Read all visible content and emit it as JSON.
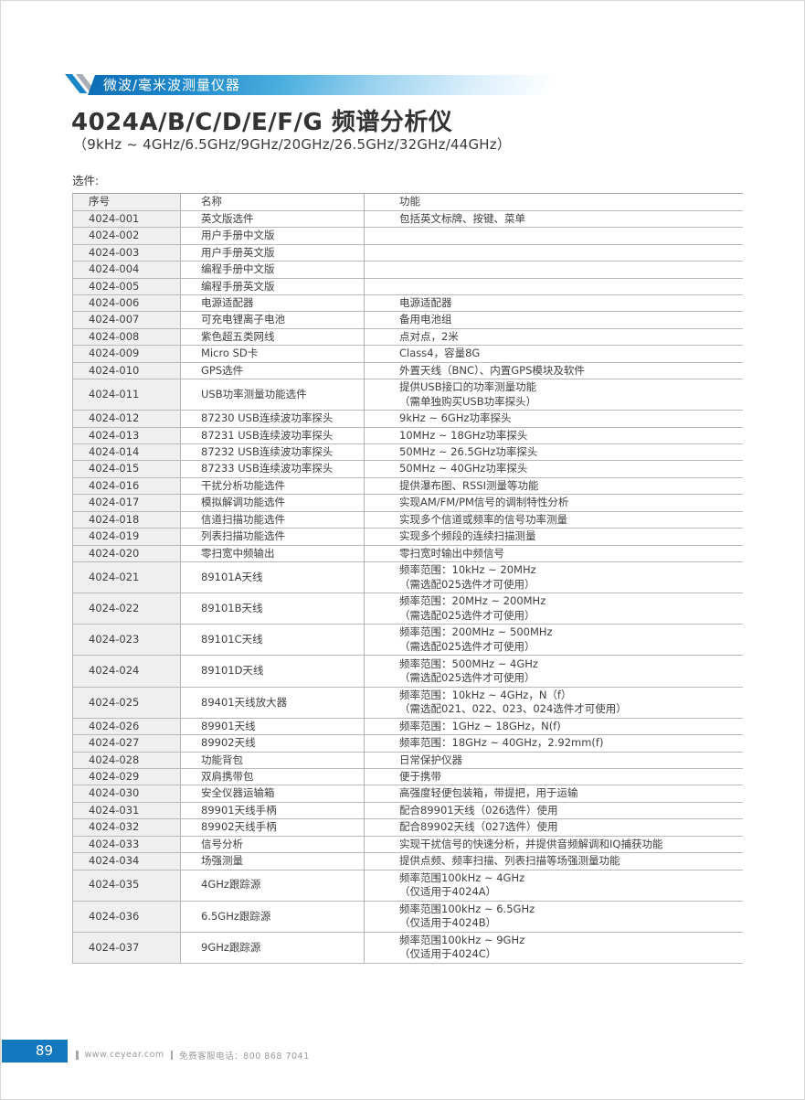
{
  "banner": {
    "label": "微波/毫米波测量仪器"
  },
  "header": {
    "title": "4024A/B/C/D/E/F/G 频谱分析仪",
    "subtitle": "（9kHz ~ 4GHz/6.5GHz/9GHz/20GHz/26.5GHz/32GHz/44GHz）",
    "section_label": "选件:"
  },
  "colors": {
    "banner_blue": "#0f6fb6",
    "footer_blue": "#1478bf",
    "table_shaded_column": "#efefef",
    "table_border": "#b5b5b5",
    "text": "#3e3e3e",
    "footer_text": "#9b9b9b"
  },
  "table": {
    "headers": [
      "序号",
      "名称",
      "功能"
    ],
    "rows": [
      {
        "no": "4024-001",
        "name": "英文版选件",
        "func": [
          "包括英文标牌、按键、菜单"
        ]
      },
      {
        "no": "4024-002",
        "name": "用户手册中文版",
        "func": []
      },
      {
        "no": "4024-003",
        "name": "用户手册英文版",
        "func": []
      },
      {
        "no": "4024-004",
        "name": "编程手册中文版",
        "func": []
      },
      {
        "no": "4024-005",
        "name": "编程手册英文版",
        "func": []
      },
      {
        "no": "4024-006",
        "name": "电源适配器",
        "func": [
          "电源适配器"
        ]
      },
      {
        "no": "4024-007",
        "name": "可充电锂离子电池",
        "func": [
          "备用电池组"
        ]
      },
      {
        "no": "4024-008",
        "name": "紫色超五类网线",
        "func": [
          "点对点，2米"
        ]
      },
      {
        "no": "4024-009",
        "name": "Micro SD卡",
        "func": [
          "Class4，容量8G"
        ]
      },
      {
        "no": "4024-010",
        "name": "GPS选件",
        "func": [
          "外置天线（BNC）、内置GPS模块及软件"
        ]
      },
      {
        "no": "4024-011",
        "name": "USB功率测量功能选件",
        "func": [
          "提供USB接口的功率测量功能",
          "（需单独购买USB功率探头）"
        ]
      },
      {
        "no": "4024-012",
        "name": "87230 USB连续波功率探头",
        "func": [
          "9kHz ~ 6GHz功率探头"
        ]
      },
      {
        "no": "4024-013",
        "name": "87231 USB连续波功率探头",
        "func": [
          "10MHz ~ 18GHz功率探头"
        ]
      },
      {
        "no": "4024-014",
        "name": "87232 USB连续波功率探头",
        "func": [
          "50MHz ~ 26.5GHz功率探头"
        ]
      },
      {
        "no": "4024-015",
        "name": "87233 USB连续波功率探头",
        "func": [
          "50MHz ~ 40GHz功率探头"
        ]
      },
      {
        "no": "4024-016",
        "name": "干扰分析功能选件",
        "func": [
          "提供瀑布图、RSSI测量等功能"
        ]
      },
      {
        "no": "4024-017",
        "name": "模拟解调功能选件",
        "func": [
          "实现AM/FM/PM信号的调制特性分析"
        ]
      },
      {
        "no": "4024-018",
        "name": "信道扫描功能选件",
        "func": [
          "实现多个信道或频率的信号功率测量"
        ]
      },
      {
        "no": "4024-019",
        "name": "列表扫描功能选件",
        "func": [
          "实现多个频段的连续扫描测量"
        ]
      },
      {
        "no": "4024-020",
        "name": "零扫宽中频输出",
        "func": [
          "零扫宽时输出中频信号"
        ]
      },
      {
        "no": "4024-021",
        "name": "89101A天线",
        "func": [
          "频率范围：10kHz ~ 20MHz",
          "（需选配025选件才可使用）"
        ]
      },
      {
        "no": "4024-022",
        "name": "89101B天线",
        "func": [
          "频率范围：20MHz ~ 200MHz",
          "（需选配025选件才可使用）"
        ]
      },
      {
        "no": "4024-023",
        "name": "89101C天线",
        "func": [
          "频率范围：200MHz ~ 500MHz",
          "（需选配025选件才可使用）"
        ]
      },
      {
        "no": "4024-024",
        "name": "89101D天线",
        "func": [
          "频率范围：500MHz ~ 4GHz",
          "（需选配025选件才可使用）"
        ]
      },
      {
        "no": "4024-025",
        "name": "89401天线放大器",
        "func": [
          "频率范围：10kHz ~ 4GHz，N（f）",
          "（需选配021、022、023、024选件才可使用）"
        ]
      },
      {
        "no": "4024-026",
        "name": "89901天线",
        "func": [
          "频率范围：1GHz ~ 18GHz，N(f)"
        ]
      },
      {
        "no": "4024-027",
        "name": "89902天线",
        "func": [
          "频率范围：18GHz ~ 40GHz，2.92mm(f)"
        ]
      },
      {
        "no": "4024-028",
        "name": "功能背包",
        "func": [
          "日常保护仪器"
        ]
      },
      {
        "no": "4024-029",
        "name": "双肩携带包",
        "func": [
          "便于携带"
        ]
      },
      {
        "no": "4024-030",
        "name": "安全仪器运输箱",
        "func": [
          "高强度轻便包装箱，带提把，用于运输"
        ]
      },
      {
        "no": "4024-031",
        "name": "89901天线手柄",
        "func": [
          "配合89901天线（026选件）使用"
        ]
      },
      {
        "no": "4024-032",
        "name": "89902天线手柄",
        "func": [
          "配合89902天线（027选件）使用"
        ]
      },
      {
        "no": "4024-033",
        "name": "信号分析",
        "func": [
          "实现干扰信号的快速分析，并提供音频解调和IQ捕获功能"
        ]
      },
      {
        "no": "4024-034",
        "name": "场强测量",
        "func": [
          "提供点频、频率扫描、列表扫描等场强测量功能"
        ]
      },
      {
        "no": "4024-035",
        "name": "4GHz跟踪源",
        "func": [
          "频率范围100kHz ~ 4GHz",
          "（仅适用于4024A）"
        ]
      },
      {
        "no": "4024-036",
        "name": "6.5GHz跟踪源",
        "func": [
          "频率范围100kHz ~ 6.5GHz",
          "（仅适用于4024B）"
        ]
      },
      {
        "no": "4024-037",
        "name": "9GHz跟踪源",
        "func": [
          "频率范围100kHz ~ 9GHz",
          "（仅适用于4024C）"
        ]
      }
    ]
  },
  "footer": {
    "page_number": "89",
    "website": "www.ceyear.com",
    "service_text": "免费客服电话：800 868 7041"
  }
}
